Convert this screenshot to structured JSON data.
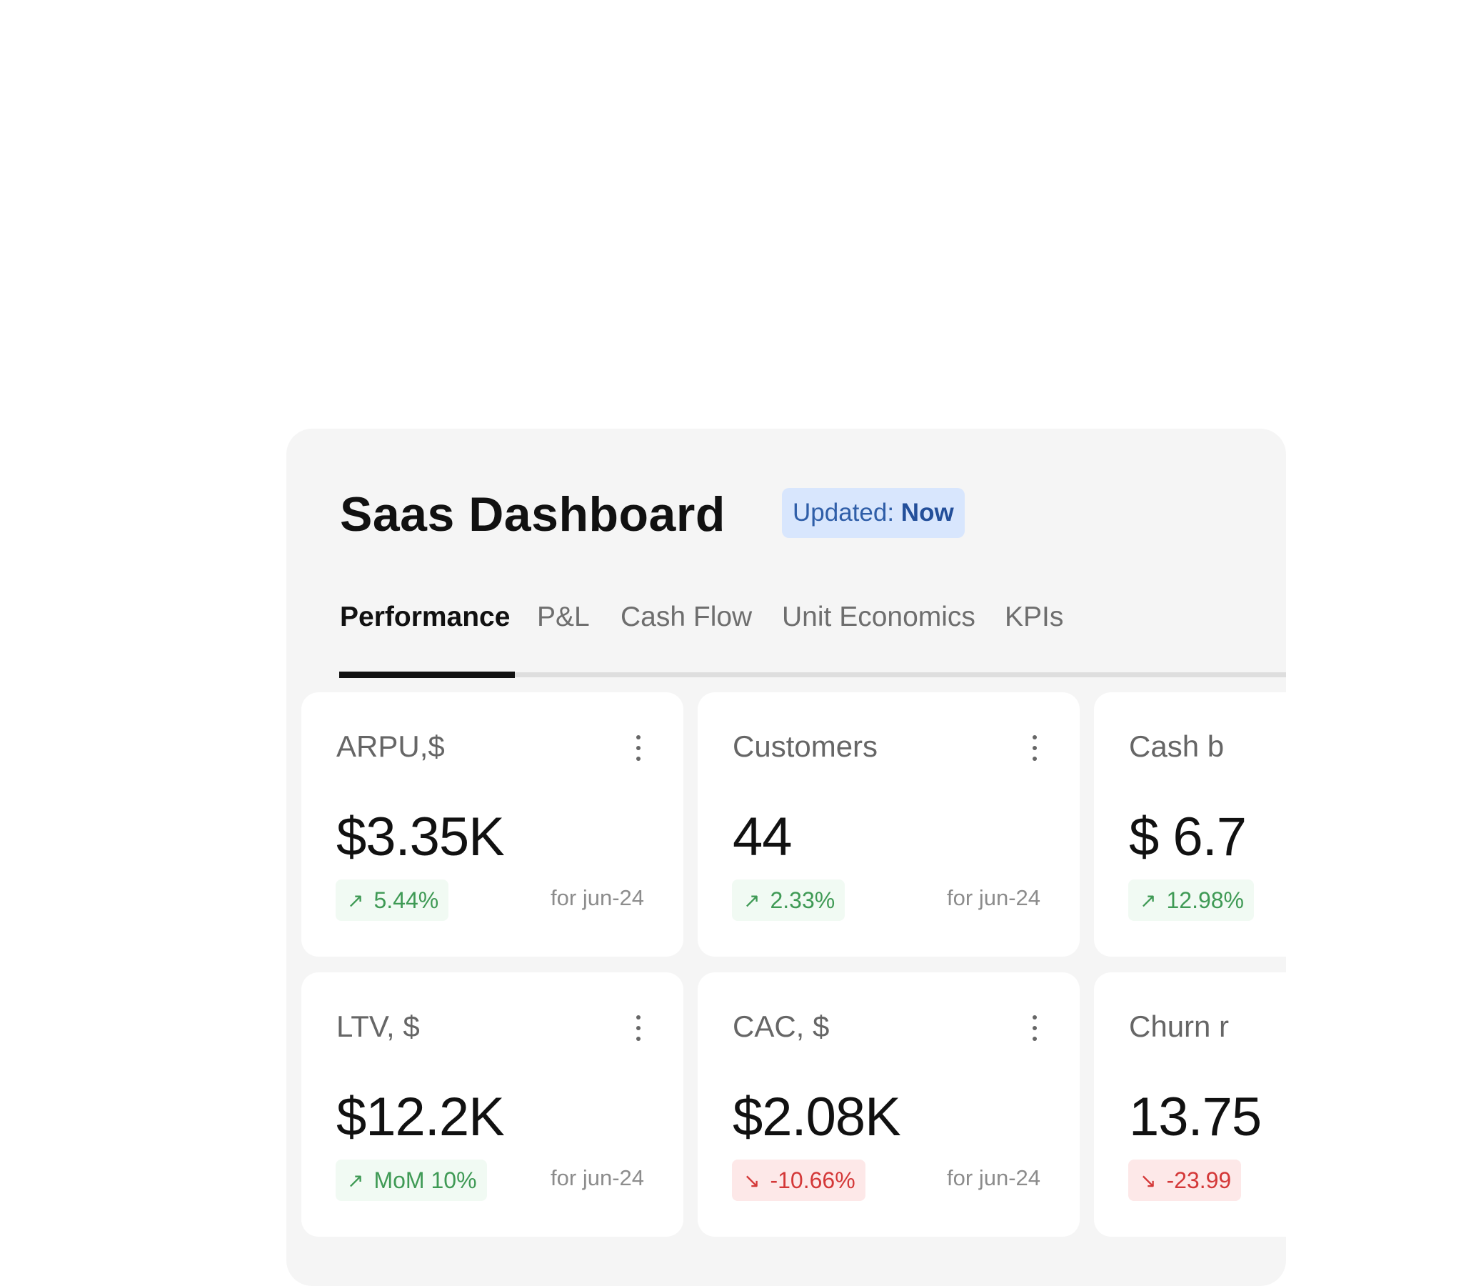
{
  "dashboard": {
    "title": "Saas Dashboard",
    "updated_prefix": "Updated:",
    "updated_value": "Now"
  },
  "tabs": [
    {
      "label": "Performance",
      "active": true
    },
    {
      "label": "P&L",
      "active": false
    },
    {
      "label": "Cash Flow",
      "active": false
    },
    {
      "label": "Unit Economics",
      "active": false
    },
    {
      "label": "KPIs",
      "active": false
    }
  ],
  "cards": [
    {
      "label": "ARPU,$",
      "value": "$3.35K",
      "delta": "5.44%",
      "direction": "up",
      "period": "for jun-24"
    },
    {
      "label": "Customers",
      "value": "44",
      "delta": "2.33%",
      "direction": "up",
      "period": "for jun-24"
    },
    {
      "label": "Cash b",
      "value": "$ 6.7",
      "delta": "12.98%",
      "direction": "up",
      "period": ""
    },
    {
      "label": "LTV, $",
      "value": "$12.2K",
      "delta": "MoM 10%",
      "direction": "up",
      "period": "for jun-24"
    },
    {
      "label": "CAC, $",
      "value": "$2.08K",
      "delta": "-10.66%",
      "direction": "down",
      "period": "for jun-24"
    },
    {
      "label": "Churn r",
      "value": "13.75",
      "delta": "-23.99",
      "direction": "down",
      "period": ""
    }
  ],
  "icons": {
    "up": "north-east-arrow-icon",
    "down": "south-east-arrow-icon",
    "menu": "kebab-menu-icon"
  },
  "colors": {
    "positive": "#3f9a55",
    "negative": "#d43838",
    "badge_bg": "#d8e6fd",
    "badge_text": "#2f5ea8"
  }
}
